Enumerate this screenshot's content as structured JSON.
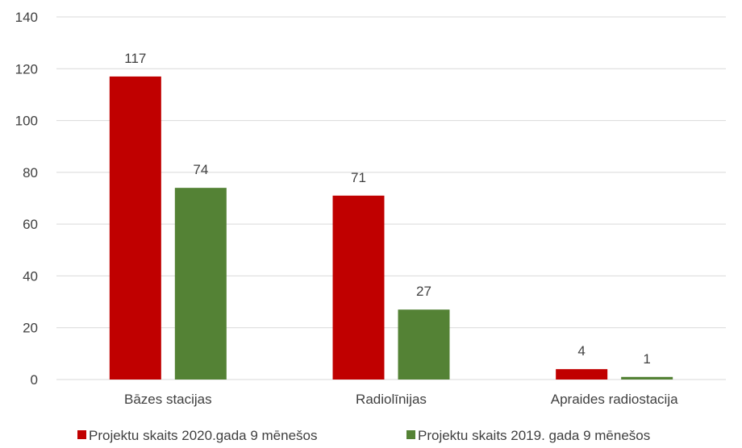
{
  "chart_data": {
    "type": "bar",
    "categories": [
      "Bāzes stacijas",
      "Radiolīnijas",
      "Apraides radiostacija"
    ],
    "series": [
      {
        "name": "Projektu skaits 2020.gada 9 mēnešos",
        "values": [
          117,
          71,
          4
        ],
        "color": "#c00000"
      },
      {
        "name": "Projektu skaits 2019. gada 9 mēnešos",
        "values": [
          74,
          27,
          1
        ],
        "color": "#548235"
      }
    ],
    "ylim": [
      0,
      140
    ],
    "yticks": [
      0,
      20,
      40,
      60,
      80,
      100,
      120,
      140
    ],
    "grid": true,
    "legend": "bottom",
    "data_labels": true
  }
}
